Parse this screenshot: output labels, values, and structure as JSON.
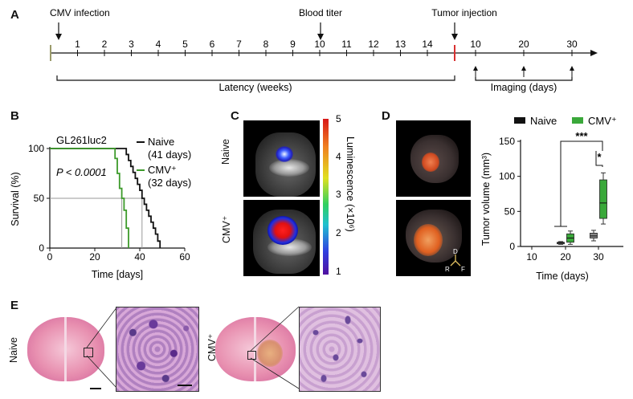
{
  "panel_a": {
    "letter": "A",
    "events": {
      "cmv": "CMV infection",
      "blood": "Blood titer",
      "tumor": "Tumor injection"
    },
    "weeks": [
      "1",
      "2",
      "3",
      "4",
      "5",
      "6",
      "7",
      "8",
      "9",
      "10",
      "11",
      "12",
      "13",
      "14"
    ],
    "days": [
      "10",
      "20",
      "30"
    ],
    "latency_label": "Latency (weeks)",
    "imaging_label": "Imaging (days)"
  },
  "panel_b": {
    "letter": "B",
    "model": "GL261luc2",
    "pvalue": "P < 0.0001",
    "legend": [
      {
        "name": "Naive",
        "median": "(41 days)",
        "color": "#111111"
      },
      {
        "name": "CMV⁺",
        "median": "(32 days)",
        "color": "#3c9a2a"
      }
    ]
  },
  "panel_c": {
    "letter": "C",
    "row_labels": [
      "Naive",
      "CMV⁺"
    ],
    "colorbar_ticks": [
      "5",
      "4",
      "3",
      "2",
      "1"
    ],
    "colorbar_label": "Luminescence (×10⁶)"
  },
  "panel_d": {
    "letter": "D",
    "legend": [
      {
        "name": "Naive",
        "color": "#111111"
      },
      {
        "name": "CMV⁺",
        "color": "#3aa83a"
      }
    ],
    "axes_labels": {
      "d": "D",
      "r": "R",
      "f": "F"
    },
    "sig_1": "***",
    "sig_2": "*"
  },
  "panel_e": {
    "letter": "E",
    "row_labels": [
      "Naive",
      "CMV⁺"
    ]
  },
  "chart_data": [
    {
      "type": "line",
      "xlabel": "Time [days]",
      "ylabel": "Survival (%)",
      "xlim": [
        0,
        60
      ],
      "ylim": [
        0,
        100
      ],
      "xticks": [
        "0",
        "20",
        "40",
        "60"
      ],
      "yticks": [
        "0",
        "50",
        "100"
      ],
      "series": [
        {
          "name": "Naive",
          "x": [
            0,
            33,
            34,
            35,
            36,
            37,
            38,
            39,
            40,
            41,
            42,
            43,
            44,
            45,
            46,
            47,
            48,
            49
          ],
          "y": [
            100,
            100,
            94,
            88,
            82,
            76,
            70,
            64,
            58,
            50,
            44,
            38,
            32,
            26,
            20,
            14,
            7,
            0
          ]
        },
        {
          "name": "CMV⁺",
          "x": [
            0,
            28,
            29,
            30,
            31,
            32,
            33,
            34,
            35
          ],
          "y": [
            100,
            100,
            90,
            75,
            60,
            50,
            38,
            20,
            0
          ]
        }
      ],
      "reference_lines": {
        "y": 50,
        "x": [
          32,
          41
        ]
      }
    },
    {
      "type": "box",
      "xlabel": "Time (days)",
      "ylabel": "Tumor volume (mm³)",
      "ylim": [
        0,
        150
      ],
      "categories": [
        "10",
        "20",
        "30"
      ],
      "yticks": [
        "0",
        "50",
        "100",
        "150"
      ],
      "series": [
        {
          "name": "Naive",
          "boxes": [
            {
              "x": "20",
              "min": 3,
              "q1": 4,
              "median": 5,
              "q3": 6,
              "max": 7
            },
            {
              "x": "30",
              "min": 8,
              "q1": 12,
              "median": 15,
              "q3": 19,
              "max": 23
            }
          ]
        },
        {
          "name": "CMV⁺",
          "boxes": [
            {
              "x": "20",
              "min": 3,
              "q1": 6,
              "median": 12,
              "q3": 18,
              "max": 22
            },
            {
              "x": "30",
              "min": 32,
              "q1": 40,
              "median": 62,
              "q3": 95,
              "max": 105
            }
          ]
        }
      ]
    }
  ]
}
